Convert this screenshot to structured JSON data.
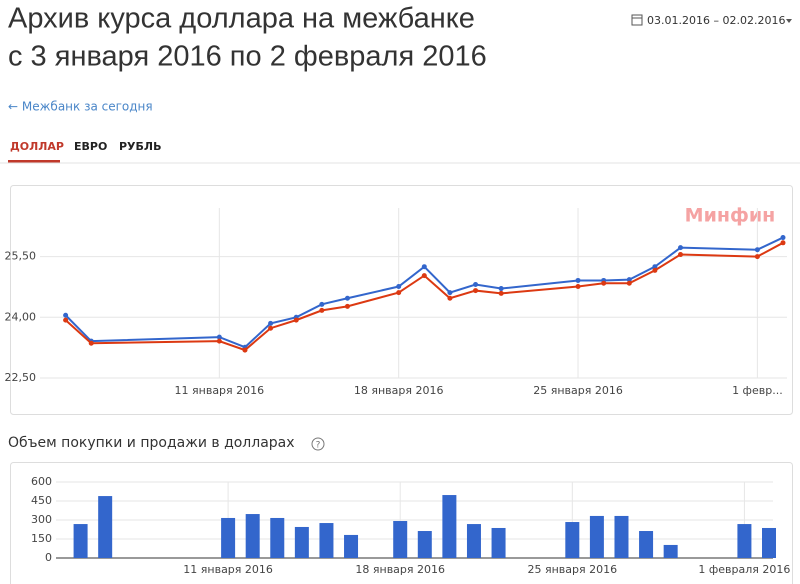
{
  "header": {
    "title_lines": [
      "Архив курса доллара на межбанке",
      "с 3 января 2016 по 2 февраля 2016"
    ],
    "date_range": "03.01.2016 – 02.02.2016"
  },
  "back_link": "← Межбанк за сегодня",
  "tabs": [
    "ДОЛЛАР",
    "ЕВРО",
    "РУБЛЬ"
  ],
  "chart_data": [
    {
      "type": "line",
      "watermark": "Минфин",
      "x": [
        "2016-01-05",
        "2016-01-06",
        "2016-01-11",
        "2016-01-12",
        "2016-01-13",
        "2016-01-14",
        "2016-01-15",
        "2016-01-16",
        "2016-01-18",
        "2016-01-19",
        "2016-01-20",
        "2016-01-21",
        "2016-01-22",
        "2016-01-25",
        "2016-01-26",
        "2016-01-27",
        "2016-01-28",
        "2016-01-29",
        "2016-02-01",
        "2016-02-02"
      ],
      "series": [
        {
          "color": "#3366cc",
          "values": [
            24.05,
            23.41,
            23.51,
            23.26,
            23.85,
            24.0,
            24.32,
            24.47,
            24.76,
            25.25,
            24.61,
            24.81,
            24.71,
            24.91,
            24.91,
            24.93,
            25.25,
            25.72,
            25.67,
            25.97
          ]
        },
        {
          "color": "#dc3912",
          "values": [
            23.93,
            23.36,
            23.41,
            23.19,
            23.73,
            23.93,
            24.17,
            24.27,
            24.61,
            25.03,
            24.47,
            24.66,
            24.59,
            24.76,
            24.84,
            24.84,
            25.16,
            25.55,
            25.5,
            25.84
          ]
        }
      ],
      "xlim": [
        "2016-01-04",
        "2016-02-02"
      ],
      "xticks": [
        {
          "value": "2016-01-11",
          "label": "11 января 2016"
        },
        {
          "value": "2016-01-18",
          "label": "18 января 2016"
        },
        {
          "value": "2016-01-25",
          "label": "25 января 2016"
        },
        {
          "value": "2016-02-01",
          "label": "1 февр..."
        }
      ],
      "ylim": [
        22.5,
        26.7
      ],
      "yticks": [
        {
          "value": 22.5,
          "label": "22,50"
        },
        {
          "value": 24,
          "label": "24,00"
        },
        {
          "value": 25.5,
          "label": "25,50"
        }
      ],
      "grid": true
    },
    {
      "type": "bar",
      "title": "Объем покупки и продажи в долларах",
      "help": "?",
      "color": "#3366cc",
      "x": [
        "2016-01-05",
        "2016-01-06",
        "2016-01-11",
        "2016-01-12",
        "2016-01-13",
        "2016-01-14",
        "2016-01-15",
        "2016-01-16",
        "2016-01-18",
        "2016-01-19",
        "2016-01-20",
        "2016-01-21",
        "2016-01-22",
        "2016-01-25",
        "2016-01-26",
        "2016-01-27",
        "2016-01-28",
        "2016-01-29",
        "2016-02-01",
        "2016-02-02"
      ],
      "values": [
        268,
        489,
        316,
        347,
        316,
        245,
        276,
        182,
        292,
        213,
        497,
        268,
        237,
        284,
        332,
        332,
        213,
        103,
        268,
        237
      ],
      "xlim": [
        "2016-01-04",
        "2016-02-02"
      ],
      "xticks": [
        {
          "value": "2016-01-11",
          "label": "11 января 2016"
        },
        {
          "value": "2016-01-18",
          "label": "18 января 2016"
        },
        {
          "value": "2016-01-25",
          "label": "25 января 2016"
        },
        {
          "value": "2016-02-01",
          "label": "1 февраля 2016"
        }
      ],
      "ylim": [
        0,
        600
      ],
      "yticks": [
        0,
        150,
        300,
        450,
        600
      ],
      "grid": true
    }
  ]
}
